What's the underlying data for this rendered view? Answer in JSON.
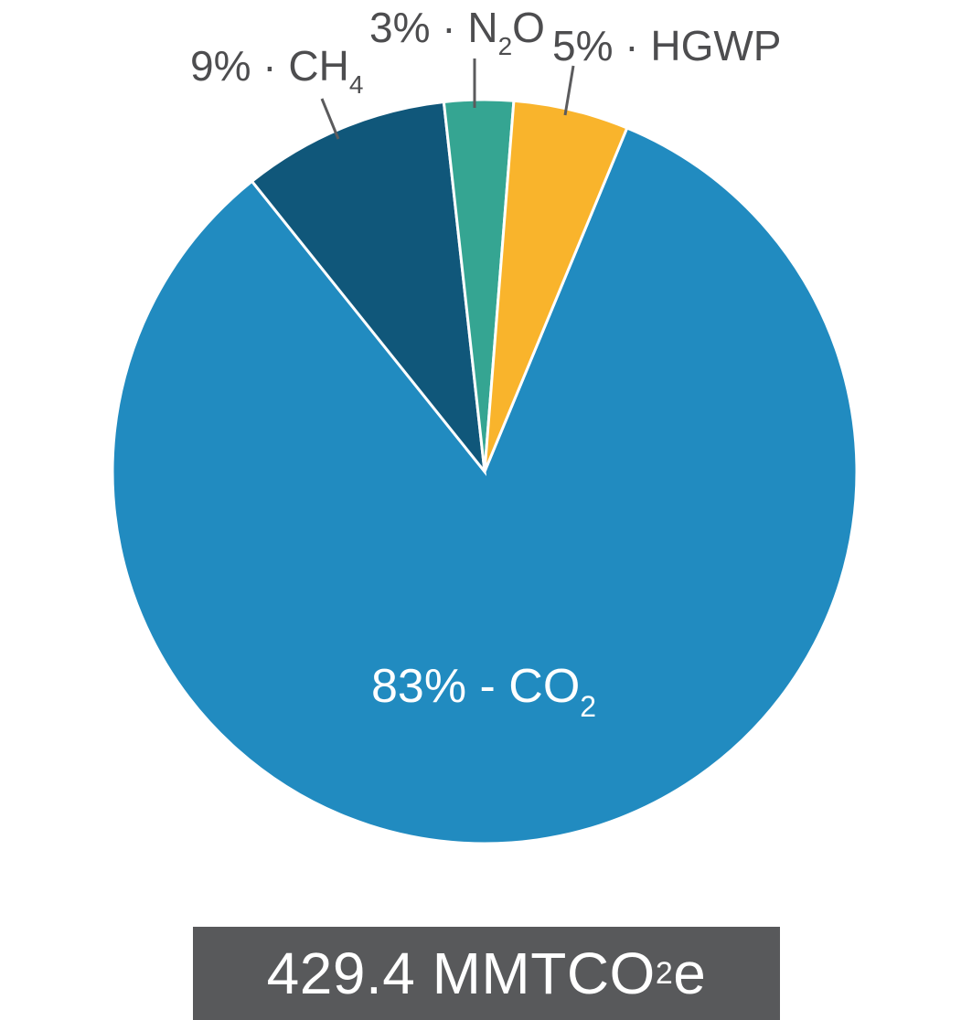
{
  "chart_data": {
    "type": "pie",
    "slices": [
      {
        "label": "CO2",
        "label_text": "83% - CO",
        "subscript": "2",
        "value": 83,
        "color": "#218bc0"
      },
      {
        "label": "CH4",
        "label_text": "9% · CH",
        "subscript": "4",
        "value": 9,
        "color": "#10577a"
      },
      {
        "label": "N2O",
        "label_text_a": "3% · N",
        "subscript": "2",
        "label_text_b": "O",
        "value": 3,
        "color": "#35a592"
      },
      {
        "label": "HGWP",
        "label_text": "5% · HGWP",
        "value": 5,
        "color": "#f9b42c"
      }
    ]
  },
  "total": {
    "value_text": "429.4 MMTCO",
    "subscript": "2",
    "suffix": "e"
  }
}
